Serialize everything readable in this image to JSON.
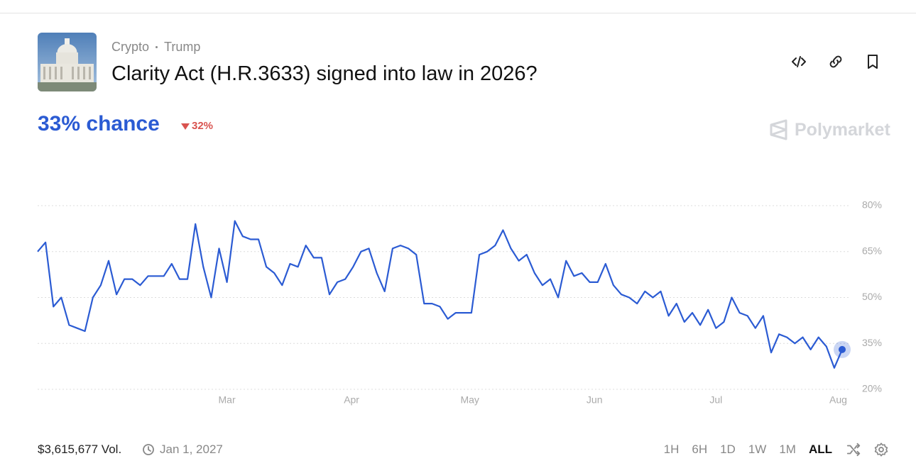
{
  "header": {
    "breadcrumb": [
      "Crypto",
      "Trump"
    ],
    "title": "Clarity Act (H.R.3633) signed into law in 2026?",
    "probability": "33% chance",
    "change": "32%",
    "brand": "Polymarket"
  },
  "chart_data": {
    "type": "line",
    "color": "#2b5bd3",
    "values": [
      65,
      68,
      47,
      50,
      41,
      40,
      39,
      50,
      54,
      62,
      51,
      56,
      56,
      54,
      57,
      57,
      57,
      61,
      56,
      56,
      74,
      60,
      50,
      66,
      55,
      75,
      70,
      69,
      69,
      60,
      58,
      54,
      61,
      60,
      67,
      63,
      63,
      51,
      55,
      56,
      60,
      65,
      66,
      58,
      52,
      66,
      67,
      66,
      64,
      48,
      48,
      47,
      43,
      45,
      45,
      45,
      64,
      65,
      67,
      72,
      66,
      62,
      64,
      58,
      54,
      56,
      50,
      62,
      57,
      58,
      55,
      55,
      61,
      54,
      51,
      50,
      48,
      52,
      50,
      52,
      44,
      48,
      42,
      45,
      41,
      46,
      40,
      42,
      50,
      45,
      44,
      40,
      44,
      32,
      38,
      37,
      35,
      37,
      33,
      37,
      34,
      27,
      33
    ],
    "xlim": [
      0,
      102
    ],
    "xticks": [
      {
        "value": 24,
        "label": "Mar"
      },
      {
        "value": 39.8,
        "label": "Apr"
      },
      {
        "value": 54.8,
        "label": "May"
      },
      {
        "value": 70.6,
        "label": "Jun"
      },
      {
        "value": 86,
        "label": "Jul"
      },
      {
        "value": 101.5,
        "label": "Aug"
      }
    ],
    "ylim": [
      20,
      80
    ],
    "yticks": [
      {
        "value": 20,
        "label": "20%"
      },
      {
        "value": 35,
        "label": "35%"
      },
      {
        "value": 50,
        "label": "50%"
      },
      {
        "value": 65,
        "label": "65%"
      },
      {
        "value": 80,
        "label": "80%"
      }
    ],
    "grid": true
  },
  "footer": {
    "volume": "$3,615,677 Vol.",
    "end_date": "Jan 1, 2027",
    "ranges": [
      "1H",
      "6H",
      "1D",
      "1W",
      "1M",
      "ALL"
    ],
    "active_range": "ALL"
  }
}
